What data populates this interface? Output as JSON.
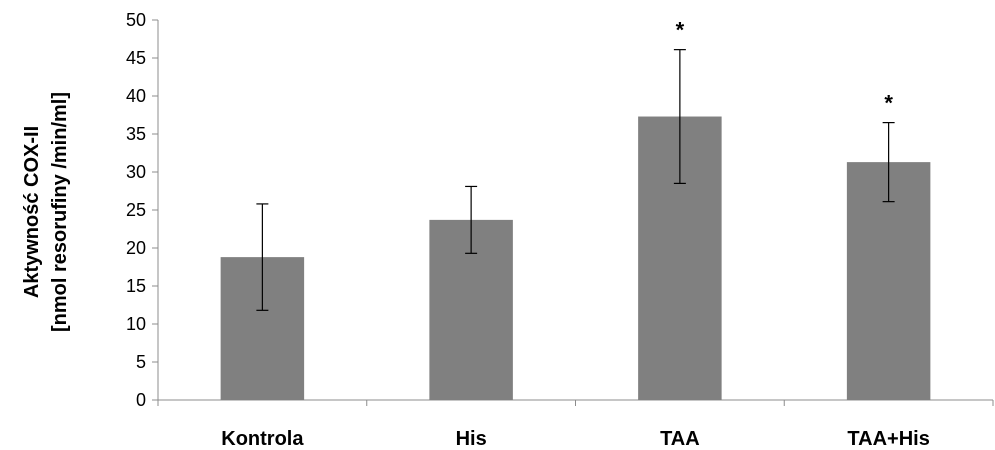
{
  "chart_data": {
    "type": "bar",
    "title": "",
    "xlabel": "",
    "ylabel_lines": [
      "Aktywność COX-II",
      "[nmol resorufiny /min/ml]"
    ],
    "categories": [
      "Kontrola",
      "His",
      "TAA",
      "TAA+His"
    ],
    "values": [
      18.8,
      23.7,
      37.3,
      31.3
    ],
    "error": [
      7.0,
      4.4,
      8.8,
      5.2
    ],
    "significance": [
      "",
      "",
      "*",
      "*"
    ],
    "ylim": [
      0,
      50
    ],
    "yticks": [
      0,
      5,
      10,
      15,
      20,
      25,
      30,
      35,
      40,
      45,
      50
    ],
    "bar_color": "#808080",
    "grid": false,
    "legend": "none"
  }
}
